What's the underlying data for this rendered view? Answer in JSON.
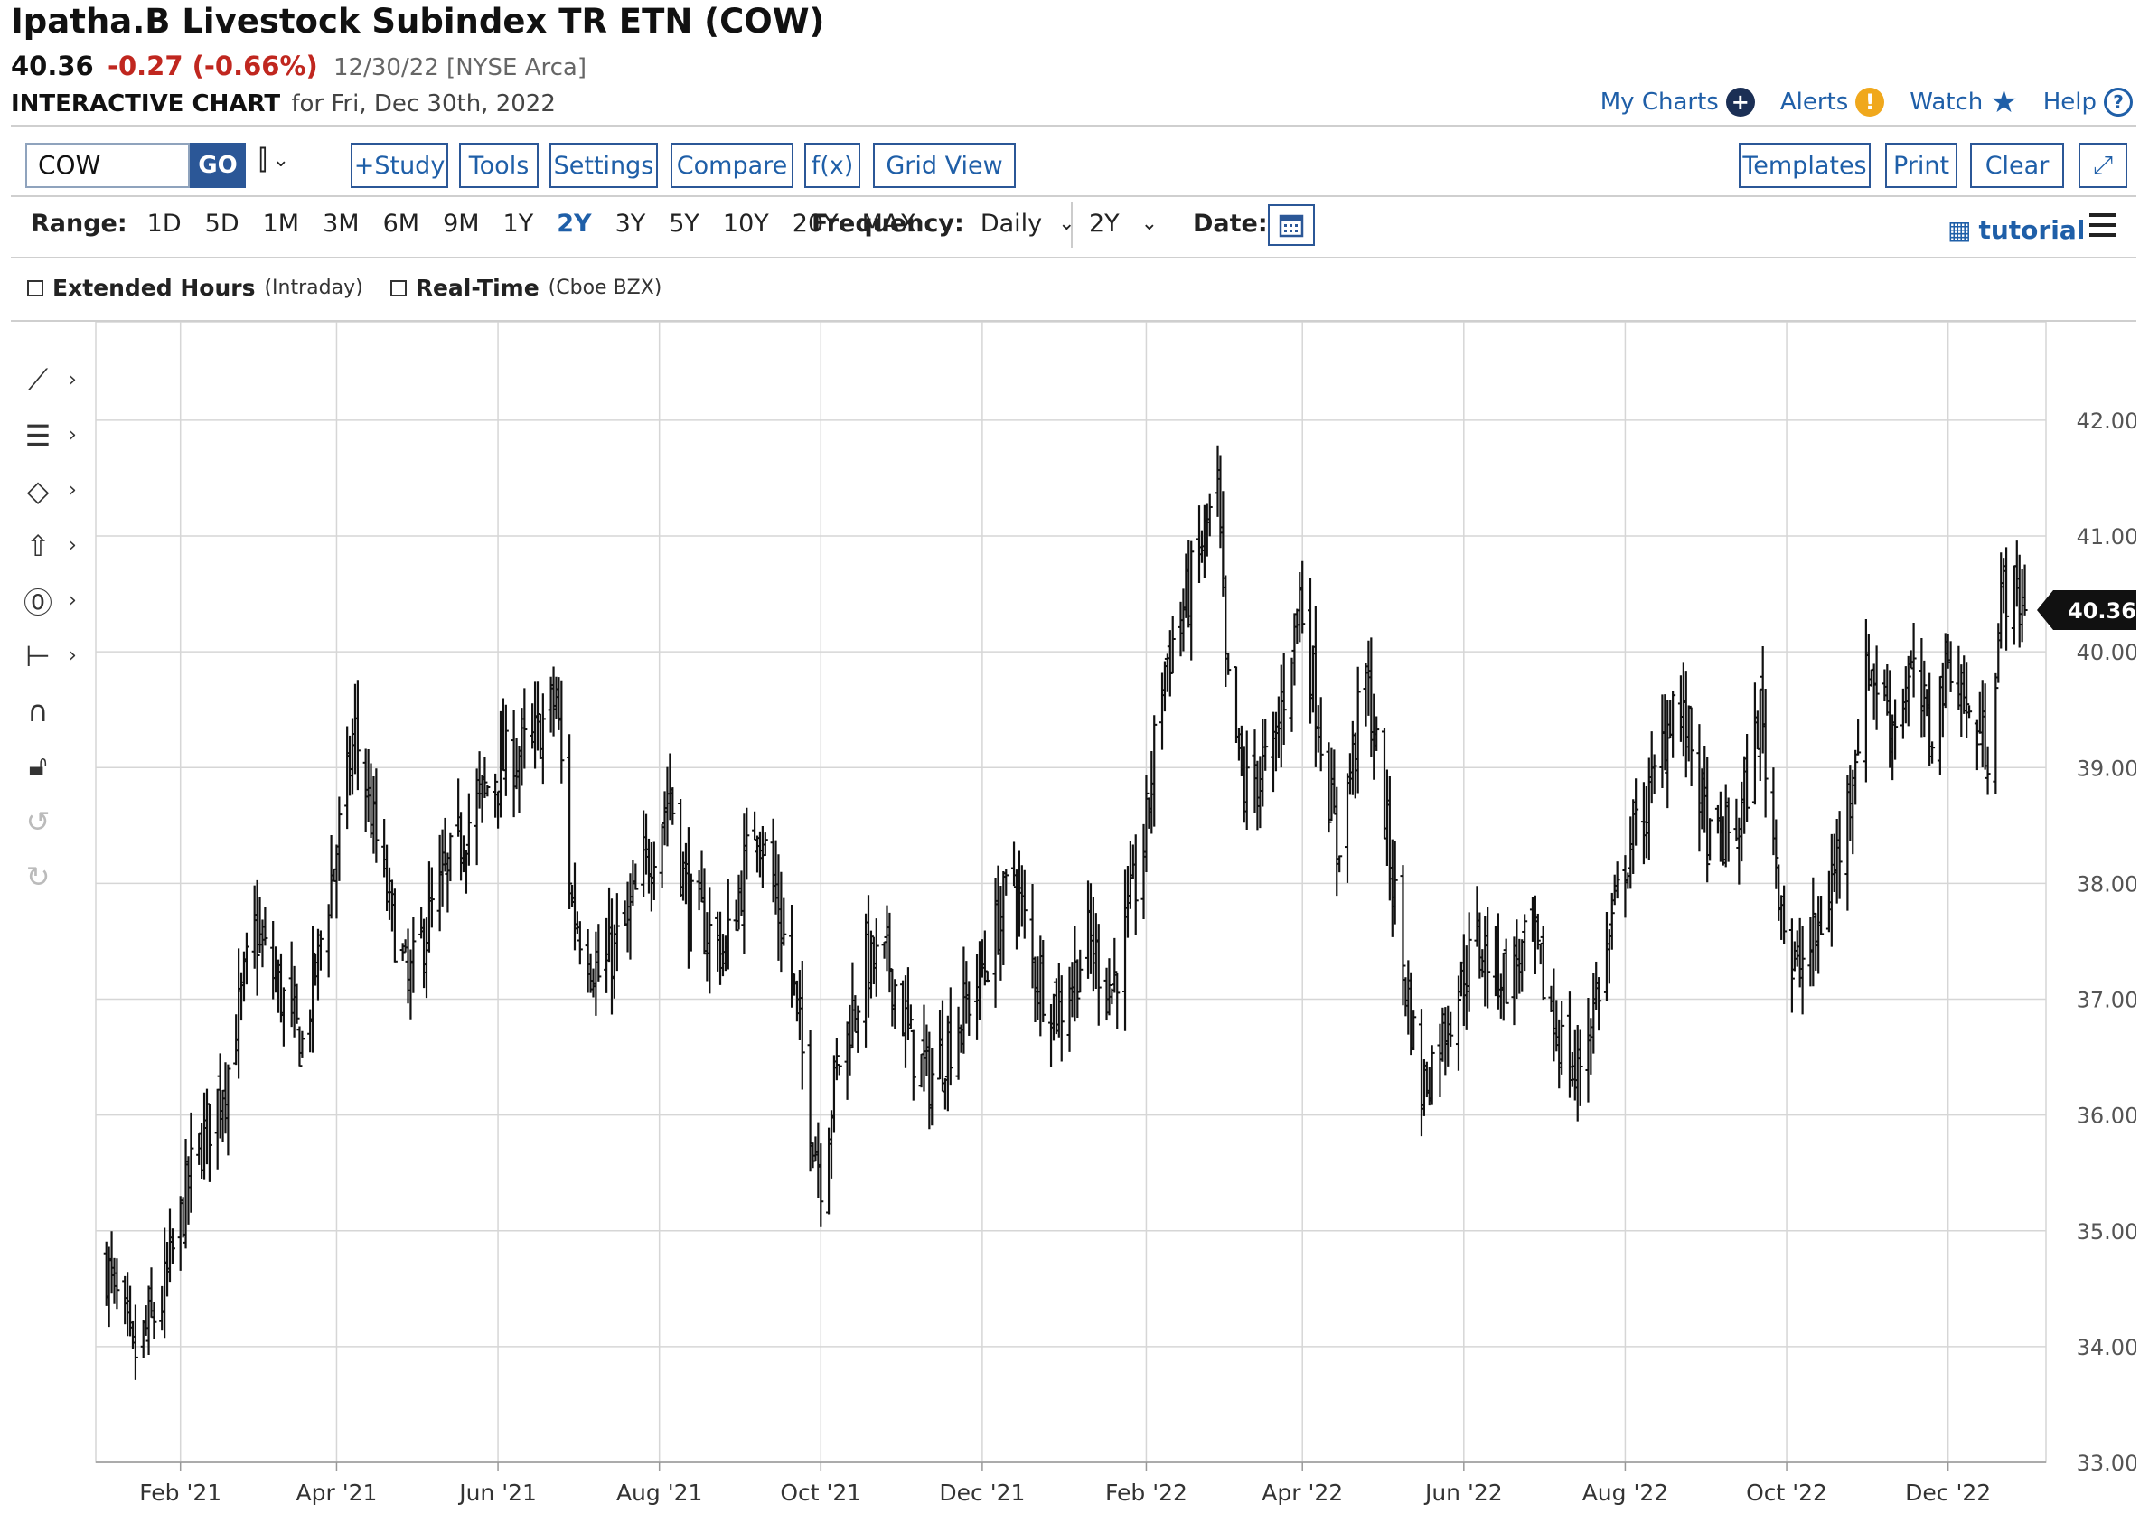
{
  "header": {
    "title": "Ipatha.B Livestock Subindex TR ETN (COW)",
    "last": "40.36",
    "change": "-0.27 (-0.66%)",
    "meta": "12/30/22 [NYSE Arca]",
    "sub_strong": "INTERACTIVE CHART",
    "sub_rest": "for Fri, Dec 30th, 2022"
  },
  "links": {
    "my_charts": "My Charts",
    "alerts": "Alerts",
    "watch": "Watch",
    "help": "Help"
  },
  "toolbar": {
    "symbol": "COW",
    "go": "GO",
    "study": "+Study",
    "tools": "Tools",
    "settings": "Settings",
    "compare": "Compare",
    "fx": "f(x)",
    "grid_view": "Grid View",
    "templates": "Templates",
    "print": "Print",
    "clear": "Clear"
  },
  "range": {
    "label": "Range:",
    "options": [
      "1D",
      "5D",
      "1M",
      "3M",
      "6M",
      "9M",
      "1Y",
      "2Y",
      "3Y",
      "5Y",
      "10Y",
      "20Y",
      "MAX"
    ],
    "active": "2Y",
    "frequency_label": "Frequency:",
    "frequency_value": "Daily",
    "period_value": "2Y",
    "date_label": "Date:",
    "tutorial": "tutorial"
  },
  "options": {
    "extended_label": "Extended Hours",
    "extended_note": "(Intraday)",
    "realtime_label": "Real-Time",
    "realtime_note": "(Cboe BZX)"
  },
  "icons": {
    "tools": [
      "trendline-icon",
      "fibonacci-icon",
      "shape-icon",
      "arrow-icon",
      "annotation-icon",
      "measure-icon",
      "magnet-icon",
      "lock-icon",
      "undo-icon",
      "redo-icon"
    ]
  },
  "chart_data": {
    "type": "ohlc",
    "y_ticks": [
      "42.00",
      "41.00",
      "40.00",
      "39.00",
      "38.00",
      "37.00",
      "36.00",
      "35.00",
      "34.00",
      "33.00"
    ],
    "x_ticks": [
      "Feb '21",
      "Apr '21",
      "Jun '21",
      "Aug '21",
      "Oct '21",
      "Dec '21",
      "Feb '22",
      "Apr '22",
      "Jun '22",
      "Aug '22",
      "Oct '22",
      "Dec '22"
    ],
    "ylim": [
      33,
      42.85
    ],
    "last_price_label": "40.36",
    "colors": {
      "bars": "#111111",
      "grid": "#d6d6d6",
      "last_label": "#111111"
    },
    "anchors": [
      [
        "2021-01-04",
        34.7
      ],
      [
        "2021-01-14",
        33.9
      ],
      [
        "2021-01-25",
        34.4
      ],
      [
        "2021-02-05",
        35.5
      ],
      [
        "2021-02-19",
        36.4
      ],
      [
        "2021-03-01",
        37.6
      ],
      [
        "2021-03-10",
        37.1
      ],
      [
        "2021-03-19",
        36.6
      ],
      [
        "2021-04-01",
        38.3
      ],
      [
        "2021-04-08",
        39.3
      ],
      [
        "2021-04-19",
        38.0
      ],
      [
        "2021-04-28",
        37.1
      ],
      [
        "2021-05-06",
        37.7
      ],
      [
        "2021-05-20",
        38.5
      ],
      [
        "2021-06-01",
        39.0
      ],
      [
        "2021-06-14",
        39.2
      ],
      [
        "2021-06-23",
        39.6
      ],
      [
        "2021-06-29",
        37.8
      ],
      [
        "2021-07-09",
        37.2
      ],
      [
        "2021-07-19",
        37.6
      ],
      [
        "2021-07-29",
        38.3
      ],
      [
        "2021-08-05",
        38.8
      ],
      [
        "2021-08-12",
        37.8
      ],
      [
        "2021-08-26",
        37.4
      ],
      [
        "2021-09-07",
        38.6
      ],
      [
        "2021-09-20",
        37.2
      ],
      [
        "2021-09-27",
        36.0
      ],
      [
        "2021-10-01",
        35.5
      ],
      [
        "2021-10-07",
        36.4
      ],
      [
        "2021-10-18",
        37.3
      ],
      [
        "2021-10-27",
        37.3
      ],
      [
        "2021-11-04",
        36.6
      ],
      [
        "2021-11-11",
        36.3
      ],
      [
        "2021-11-22",
        36.8
      ],
      [
        "2021-12-02",
        37.3
      ],
      [
        "2021-12-13",
        38.1
      ],
      [
        "2021-12-20",
        37.3
      ],
      [
        "2021-12-30",
        36.9
      ],
      [
        "2022-01-10",
        37.5
      ],
      [
        "2022-01-19",
        37.1
      ],
      [
        "2022-01-31",
        38.3
      ],
      [
        "2022-02-07",
        39.8
      ],
      [
        "2022-02-18",
        40.6
      ],
      [
        "2022-02-28",
        41.4
      ],
      [
        "2022-03-03",
        39.8
      ],
      [
        "2022-03-10",
        38.8
      ],
      [
        "2022-03-21",
        39.1
      ],
      [
        "2022-03-31",
        40.5
      ],
      [
        "2022-04-06",
        39.6
      ],
      [
        "2022-04-14",
        38.3
      ],
      [
        "2022-04-25",
        39.8
      ],
      [
        "2022-05-02",
        38.6
      ],
      [
        "2022-05-09",
        37.3
      ],
      [
        "2022-05-16",
        36.2
      ],
      [
        "2022-05-25",
        36.8
      ],
      [
        "2022-06-06",
        37.5
      ],
      [
        "2022-06-17",
        37.2
      ],
      [
        "2022-06-27",
        37.5
      ],
      [
        "2022-07-05",
        36.8
      ],
      [
        "2022-07-13",
        36.3
      ],
      [
        "2022-07-25",
        37.4
      ],
      [
        "2022-08-01",
        38.2
      ],
      [
        "2022-08-11",
        38.8
      ],
      [
        "2022-08-19",
        39.6
      ],
      [
        "2022-08-26",
        39.2
      ],
      [
        "2022-09-02",
        38.3
      ],
      [
        "2022-09-13",
        38.5
      ],
      [
        "2022-09-21",
        39.5
      ],
      [
        "2022-09-26",
        38.4
      ],
      [
        "2022-10-03",
        37.2
      ],
      [
        "2022-10-12",
        37.5
      ],
      [
        "2022-10-21",
        38.3
      ],
      [
        "2022-11-01",
        39.9
      ],
      [
        "2022-11-10",
        39.4
      ],
      [
        "2022-11-17",
        39.8
      ],
      [
        "2022-11-24",
        39.3
      ],
      [
        "2022-12-02",
        40.0
      ],
      [
        "2022-12-09",
        39.4
      ],
      [
        "2022-12-16",
        39.2
      ],
      [
        "2022-12-22",
        40.6
      ],
      [
        "2022-12-30",
        40.36
      ]
    ]
  }
}
